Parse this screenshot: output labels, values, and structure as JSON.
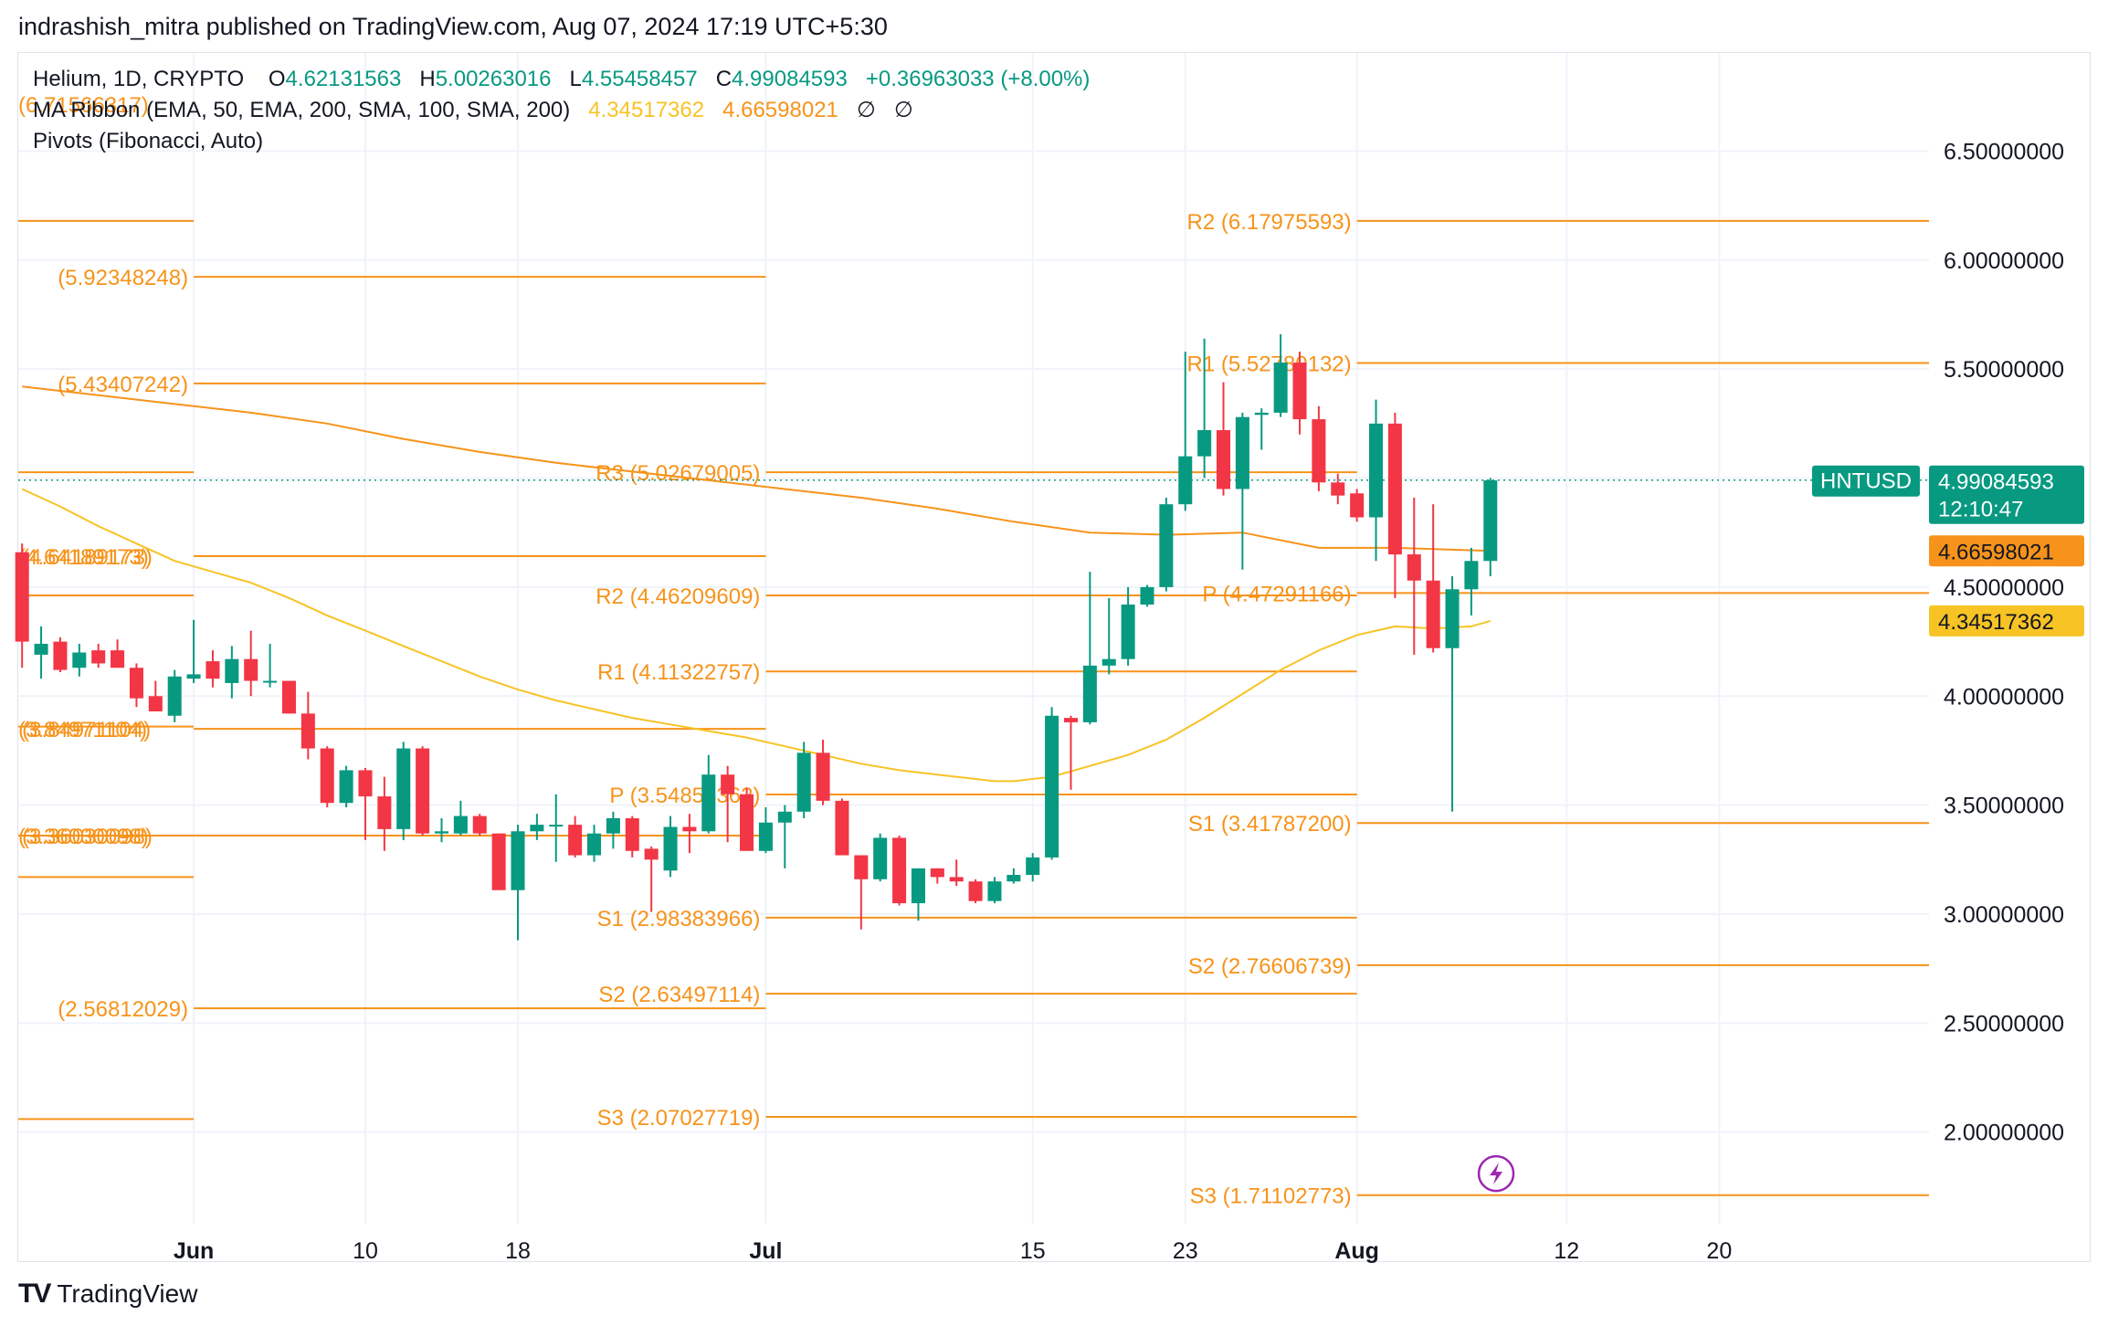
{
  "header": {
    "publisher_line": "indrashish_mitra published on TradingView.com, Aug 07, 2024 17:19 UTC+5:30"
  },
  "legend": {
    "symbol": "Helium, 1D, CRYPTO",
    "o_label": "O",
    "o_value": "4.62131563",
    "h_label": "H",
    "h_value": "5.00263016",
    "l_label": "L",
    "l_value": "4.55458457",
    "c_label": "C",
    "c_value": "4.99084593",
    "change": "+0.36963033 (+8.00%)",
    "ma_label": "MA Ribbon (EMA, 50, EMA, 200, SMA, 100, SMA, 200)",
    "ma_ema50": "4.34517362",
    "ma_ema200": "4.66598021",
    "ma_sma100": "∅",
    "ma_sma200": "∅",
    "pivots_label": "Pivots (Fibonacci, Auto)"
  },
  "footer": {
    "brand": "TradingView",
    "brand_logo": "TV"
  },
  "colors": {
    "up": "#089981",
    "down": "#f23645",
    "pivot": "#f7931a",
    "ema50": "#f7c325",
    "ema200": "#f7931a",
    "grid": "#f0f3fa",
    "axis_text": "#131722",
    "ticker_bg": "#089981",
    "ema200_tag_bg": "#f7931a",
    "ema50_tag_bg": "#f7c325",
    "event_icon": "#9c27b0"
  },
  "chart_data": {
    "type": "candlestick",
    "symbol": "HNTUSD",
    "y_ticks": [
      "6.50000000",
      "6.00000000",
      "5.50000000",
      "4.50000000",
      "4.00000000",
      "3.50000000",
      "3.00000000",
      "2.50000000",
      "2.00000000"
    ],
    "y_tick_values": [
      6.5,
      6.0,
      5.5,
      4.5,
      4.0,
      3.5,
      3.0,
      2.5,
      2.0
    ],
    "ylim": [
      1.58,
      6.95
    ],
    "x_ticks": [
      {
        "label": "Jun",
        "day": 31,
        "bold": true
      },
      {
        "label": "10",
        "day": 40
      },
      {
        "label": "18",
        "day": 48
      },
      {
        "label": "Jul",
        "day": 61,
        "bold": true
      },
      {
        "label": "15",
        "day": 75
      },
      {
        "label": "23",
        "day": 83
      },
      {
        "label": "Aug",
        "day": 92,
        "bold": true
      },
      {
        "label": "12",
        "day": 103
      },
      {
        "label": "20",
        "day": 111
      }
    ],
    "xlim": [
      21.8,
      122
    ],
    "last_price": {
      "label": "HNTUSD",
      "value": "4.99084593",
      "countdown": "12:10:47",
      "price": 4.99084593
    },
    "ma_tags": [
      {
        "value": "4.66598021",
        "price": 4.66598021,
        "series": "EMA 200"
      },
      {
        "value": "4.34517362",
        "price": 4.34517362,
        "series": "EMA 50"
      }
    ],
    "candles": [
      {
        "d": 22,
        "o": 4.66,
        "h": 4.7,
        "l": 4.13,
        "c": 4.25
      },
      {
        "d": 23,
        "o": 4.19,
        "h": 4.32,
        "l": 4.08,
        "c": 4.24
      },
      {
        "d": 24,
        "o": 4.25,
        "h": 4.27,
        "l": 4.11,
        "c": 4.12
      },
      {
        "d": 25,
        "o": 4.13,
        "h": 4.24,
        "l": 4.09,
        "c": 4.2
      },
      {
        "d": 26,
        "o": 4.21,
        "h": 4.24,
        "l": 4.13,
        "c": 4.15
      },
      {
        "d": 27,
        "o": 4.21,
        "h": 4.26,
        "l": 4.13,
        "c": 4.13
      },
      {
        "d": 28,
        "o": 4.13,
        "h": 4.15,
        "l": 3.95,
        "c": 3.99
      },
      {
        "d": 29,
        "o": 4.0,
        "h": 4.07,
        "l": 3.93,
        "c": 3.93
      },
      {
        "d": 30,
        "o": 3.91,
        "h": 4.12,
        "l": 3.88,
        "c": 4.09
      },
      {
        "d": 31,
        "o": 4.08,
        "h": 4.35,
        "l": 4.06,
        "c": 4.1
      },
      {
        "d": 32,
        "o": 4.16,
        "h": 4.21,
        "l": 4.04,
        "c": 4.08
      },
      {
        "d": 33,
        "o": 4.06,
        "h": 4.23,
        "l": 3.99,
        "c": 4.17
      },
      {
        "d": 34,
        "o": 4.17,
        "h": 4.3,
        "l": 4.0,
        "c": 4.07
      },
      {
        "d": 35,
        "o": 4.07,
        "h": 4.24,
        "l": 4.04,
        "c": 4.07
      },
      {
        "d": 36,
        "o": 4.07,
        "h": 4.07,
        "l": 3.92,
        "c": 3.92
      },
      {
        "d": 37,
        "o": 3.92,
        "h": 4.02,
        "l": 3.71,
        "c": 3.76
      },
      {
        "d": 38,
        "o": 3.76,
        "h": 3.77,
        "l": 3.49,
        "c": 3.51
      },
      {
        "d": 39,
        "o": 3.51,
        "h": 3.68,
        "l": 3.49,
        "c": 3.66
      },
      {
        "d": 40,
        "o": 3.66,
        "h": 3.67,
        "l": 3.34,
        "c": 3.54
      },
      {
        "d": 41,
        "o": 3.54,
        "h": 3.63,
        "l": 3.29,
        "c": 3.39
      },
      {
        "d": 42,
        "o": 3.39,
        "h": 3.79,
        "l": 3.34,
        "c": 3.76
      },
      {
        "d": 43,
        "o": 3.76,
        "h": 3.77,
        "l": 3.36,
        "c": 3.37
      },
      {
        "d": 44,
        "o": 3.37,
        "h": 3.44,
        "l": 3.33,
        "c": 3.38
      },
      {
        "d": 45,
        "o": 3.37,
        "h": 3.52,
        "l": 3.36,
        "c": 3.45
      },
      {
        "d": 46,
        "o": 3.45,
        "h": 3.46,
        "l": 3.36,
        "c": 3.37
      },
      {
        "d": 47,
        "o": 3.37,
        "h": 3.37,
        "l": 3.14,
        "c": 3.11
      },
      {
        "d": 48,
        "o": 3.11,
        "h": 3.41,
        "l": 2.88,
        "c": 3.38
      },
      {
        "d": 49,
        "o": 3.38,
        "h": 3.46,
        "l": 3.34,
        "c": 3.41
      },
      {
        "d": 50,
        "o": 3.41,
        "h": 3.55,
        "l": 3.24,
        "c": 3.41
      },
      {
        "d": 51,
        "o": 3.41,
        "h": 3.45,
        "l": 3.26,
        "c": 3.27
      },
      {
        "d": 52,
        "o": 3.27,
        "h": 3.41,
        "l": 3.24,
        "c": 3.37
      },
      {
        "d": 53,
        "o": 3.37,
        "h": 3.47,
        "l": 3.3,
        "c": 3.44
      },
      {
        "d": 54,
        "o": 3.44,
        "h": 3.45,
        "l": 3.26,
        "c": 3.29
      },
      {
        "d": 55,
        "o": 3.3,
        "h": 3.31,
        "l": 3.01,
        "c": 3.25
      },
      {
        "d": 56,
        "o": 3.2,
        "h": 3.45,
        "l": 3.17,
        "c": 3.4
      },
      {
        "d": 57,
        "o": 3.4,
        "h": 3.46,
        "l": 3.28,
        "c": 3.38
      },
      {
        "d": 58,
        "o": 3.38,
        "h": 3.73,
        "l": 3.37,
        "c": 3.64
      },
      {
        "d": 59,
        "o": 3.64,
        "h": 3.68,
        "l": 3.33,
        "c": 3.55
      },
      {
        "d": 60,
        "o": 3.55,
        "h": 3.58,
        "l": 3.3,
        "c": 3.29
      },
      {
        "d": 61,
        "o": 3.29,
        "h": 3.49,
        "l": 3.28,
        "c": 3.42
      },
      {
        "d": 62,
        "o": 3.42,
        "h": 3.5,
        "l": 3.21,
        "c": 3.47
      },
      {
        "d": 63,
        "o": 3.47,
        "h": 3.79,
        "l": 3.44,
        "c": 3.74
      },
      {
        "d": 64,
        "o": 3.74,
        "h": 3.8,
        "l": 3.5,
        "c": 3.52
      },
      {
        "d": 65,
        "o": 3.52,
        "h": 3.53,
        "l": 3.28,
        "c": 3.27
      },
      {
        "d": 66,
        "o": 3.27,
        "h": 3.27,
        "l": 2.93,
        "c": 3.16
      },
      {
        "d": 67,
        "o": 3.16,
        "h": 3.37,
        "l": 3.15,
        "c": 3.35
      },
      {
        "d": 68,
        "o": 3.35,
        "h": 3.36,
        "l": 3.04,
        "c": 3.05
      },
      {
        "d": 69,
        "o": 3.05,
        "h": 3.21,
        "l": 2.97,
        "c": 3.21
      },
      {
        "d": 70,
        "o": 3.21,
        "h": 3.21,
        "l": 3.14,
        "c": 3.17
      },
      {
        "d": 71,
        "o": 3.17,
        "h": 3.25,
        "l": 3.13,
        "c": 3.15
      },
      {
        "d": 72,
        "o": 3.15,
        "h": 3.16,
        "l": 3.05,
        "c": 3.06
      },
      {
        "d": 73,
        "o": 3.06,
        "h": 3.17,
        "l": 3.05,
        "c": 3.15
      },
      {
        "d": 74,
        "o": 3.15,
        "h": 3.21,
        "l": 3.14,
        "c": 3.18
      },
      {
        "d": 75,
        "o": 3.18,
        "h": 3.28,
        "l": 3.15,
        "c": 3.26
      },
      {
        "d": 76,
        "o": 3.26,
        "h": 3.95,
        "l": 3.25,
        "c": 3.91
      },
      {
        "d": 77,
        "o": 3.9,
        "h": 3.91,
        "l": 3.57,
        "c": 3.88
      },
      {
        "d": 78,
        "o": 3.88,
        "h": 4.57,
        "l": 3.87,
        "c": 4.14
      },
      {
        "d": 79,
        "o": 4.14,
        "h": 4.45,
        "l": 4.1,
        "c": 4.17
      },
      {
        "d": 80,
        "o": 4.17,
        "h": 4.5,
        "l": 4.14,
        "c": 4.42
      },
      {
        "d": 81,
        "o": 4.42,
        "h": 4.51,
        "l": 4.41,
        "c": 4.5
      },
      {
        "d": 82,
        "o": 4.5,
        "h": 4.91,
        "l": 4.48,
        "c": 4.88
      },
      {
        "d": 83,
        "o": 4.88,
        "h": 5.58,
        "l": 4.85,
        "c": 5.1
      },
      {
        "d": 84,
        "o": 5.1,
        "h": 5.64,
        "l": 5.0,
        "c": 5.22
      },
      {
        "d": 85,
        "o": 5.22,
        "h": 5.44,
        "l": 4.92,
        "c": 4.95
      },
      {
        "d": 86,
        "o": 4.95,
        "h": 5.3,
        "l": 4.58,
        "c": 5.28
      },
      {
        "d": 87,
        "o": 5.29,
        "h": 5.32,
        "l": 5.13,
        "c": 5.3
      },
      {
        "d": 88,
        "o": 5.3,
        "h": 5.66,
        "l": 5.28,
        "c": 5.53
      },
      {
        "d": 89,
        "o": 5.53,
        "h": 5.58,
        "l": 5.2,
        "c": 5.27
      },
      {
        "d": 90,
        "o": 5.27,
        "h": 5.33,
        "l": 4.94,
        "c": 4.98
      },
      {
        "d": 91,
        "o": 4.98,
        "h": 5.02,
        "l": 4.88,
        "c": 4.92
      },
      {
        "d": 92,
        "o": 4.93,
        "h": 4.95,
        "l": 4.8,
        "c": 4.82
      },
      {
        "d": 93,
        "o": 4.82,
        "h": 5.36,
        "l": 4.62,
        "c": 5.25
      },
      {
        "d": 94,
        "o": 5.25,
        "h": 5.3,
        "l": 4.45,
        "c": 4.65
      },
      {
        "d": 95,
        "o": 4.65,
        "h": 4.91,
        "l": 4.19,
        "c": 4.53
      },
      {
        "d": 96,
        "o": 4.53,
        "h": 4.88,
        "l": 4.2,
        "c": 4.22
      },
      {
        "d": 97,
        "o": 4.22,
        "h": 4.55,
        "l": 3.47,
        "c": 4.49
      },
      {
        "d": 98,
        "o": 4.49,
        "h": 4.68,
        "l": 4.37,
        "c": 4.62
      },
      {
        "d": 99,
        "o": 4.62,
        "h": 5.0,
        "l": 4.55,
        "c": 4.99
      }
    ],
    "ema50": [
      {
        "d": 22,
        "v": 4.95
      },
      {
        "d": 24,
        "v": 4.87
      },
      {
        "d": 26,
        "v": 4.78
      },
      {
        "d": 28,
        "v": 4.7
      },
      {
        "d": 30,
        "v": 4.62
      },
      {
        "d": 32,
        "v": 4.57
      },
      {
        "d": 34,
        "v": 4.52
      },
      {
        "d": 36,
        "v": 4.45
      },
      {
        "d": 38,
        "v": 4.37
      },
      {
        "d": 40,
        "v": 4.3
      },
      {
        "d": 42,
        "v": 4.23
      },
      {
        "d": 44,
        "v": 4.16
      },
      {
        "d": 46,
        "v": 4.09
      },
      {
        "d": 48,
        "v": 4.03
      },
      {
        "d": 50,
        "v": 3.98
      },
      {
        "d": 52,
        "v": 3.94
      },
      {
        "d": 54,
        "v": 3.9
      },
      {
        "d": 56,
        "v": 3.87
      },
      {
        "d": 58,
        "v": 3.84
      },
      {
        "d": 60,
        "v": 3.81
      },
      {
        "d": 62,
        "v": 3.77
      },
      {
        "d": 64,
        "v": 3.73
      },
      {
        "d": 66,
        "v": 3.69
      },
      {
        "d": 68,
        "v": 3.66
      },
      {
        "d": 70,
        "v": 3.64
      },
      {
        "d": 72,
        "v": 3.62
      },
      {
        "d": 73,
        "v": 3.61
      },
      {
        "d": 74,
        "v": 3.61
      },
      {
        "d": 76,
        "v": 3.63
      },
      {
        "d": 78,
        "v": 3.68
      },
      {
        "d": 80,
        "v": 3.73
      },
      {
        "d": 82,
        "v": 3.8
      },
      {
        "d": 84,
        "v": 3.9
      },
      {
        "d": 86,
        "v": 4.01
      },
      {
        "d": 88,
        "v": 4.12
      },
      {
        "d": 90,
        "v": 4.21
      },
      {
        "d": 92,
        "v": 4.28
      },
      {
        "d": 94,
        "v": 4.32
      },
      {
        "d": 96,
        "v": 4.31
      },
      {
        "d": 98,
        "v": 4.32
      },
      {
        "d": 99,
        "v": 4.345
      }
    ],
    "ema200": [
      {
        "d": 22,
        "v": 5.42
      },
      {
        "d": 26,
        "v": 5.38
      },
      {
        "d": 30,
        "v": 5.34
      },
      {
        "d": 34,
        "v": 5.3
      },
      {
        "d": 38,
        "v": 5.25
      },
      {
        "d": 42,
        "v": 5.18
      },
      {
        "d": 46,
        "v": 5.12
      },
      {
        "d": 50,
        "v": 5.07
      },
      {
        "d": 54,
        "v": 5.03
      },
      {
        "d": 58,
        "v": 4.99
      },
      {
        "d": 62,
        "v": 4.95
      },
      {
        "d": 66,
        "v": 4.91
      },
      {
        "d": 70,
        "v": 4.86
      },
      {
        "d": 74,
        "v": 4.8
      },
      {
        "d": 78,
        "v": 4.75
      },
      {
        "d": 82,
        "v": 4.74
      },
      {
        "d": 86,
        "v": 4.75
      },
      {
        "d": 90,
        "v": 4.68
      },
      {
        "d": 94,
        "v": 4.68
      },
      {
        "d": 99,
        "v": 4.666
      }
    ],
    "pivot_periods": [
      {
        "start": 21.8,
        "end": 31,
        "levels": [
          {
            "value": 6.17975593,
            "label": "(6.71566317)",
            "label_level": 6.71566317
          },
          {
            "value": 5.02679005,
            "label": "",
            "label_level": 5.02679005
          },
          {
            "value": 4.46209609,
            "label": "(4.64189173)",
            "label_level": 4.64189173
          },
          {
            "value": 3.86,
            "label": "(3.84971104)",
            "label_level": 3.84971104
          },
          {
            "value": 3.36030098,
            "label": "(3.36030098)",
            "label_level": 3.36030098
          },
          {
            "value": 3.17,
            "label": "",
            "label_level": 3.17
          },
          {
            "value": 2.06,
            "label": "",
            "label_level": 2.06
          }
        ]
      },
      {
        "start": 31,
        "end": 61,
        "levels": [
          {
            "value": 5.92348248,
            "label": "(5.92348248)",
            "label_level": 5.92348248
          },
          {
            "value": 5.43407242,
            "label": "(5.43407242)",
            "label_level": 5.43407242
          },
          {
            "value": 4.64189173,
            "label": "(4.64189173)",
            "label_level": 4.64189173
          },
          {
            "value": 3.84971104,
            "label": "(3.84971104)",
            "label_level": 3.84971104
          },
          {
            "value": 3.36030098,
            "label": "(3.36030098)",
            "label_level": 3.36030098
          },
          {
            "value": 2.56812029,
            "label": "(2.56812029)",
            "label_level": 2.56812029
          }
        ]
      },
      {
        "start": 61,
        "end": 92,
        "levels": [
          {
            "value": 5.02679005,
            "label": "R3 (5.02679005)",
            "label_level": 5.02679005
          },
          {
            "value": 4.46209609,
            "label": "R2 (4.46209609)",
            "label_level": 4.46209609
          },
          {
            "value": 4.11322757,
            "label": "R1 (4.11322757)",
            "label_level": 4.11322757
          },
          {
            "value": 3.54853362,
            "label": "P (3.54853362)",
            "label_level": 3.54853362
          },
          {
            "value": 2.98383966,
            "label": "S1 (2.98383966)",
            "label_level": 2.98383966
          },
          {
            "value": 2.63497114,
            "label": "S2 (2.63497114)",
            "label_level": 2.63497114
          },
          {
            "value": 2.07027719,
            "label": "S3 (2.07027719)",
            "label_level": 2.07027719
          }
        ]
      },
      {
        "start": 92,
        "end": 122,
        "levels": [
          {
            "value": 6.17975593,
            "label": "R2 (6.17975593)",
            "label_level": 6.17975593
          },
          {
            "value": 5.52780132,
            "label": "R1 (5.52780132)",
            "label_level": 5.52780132
          },
          {
            "value": 4.47291166,
            "label": "P (4.47291166)",
            "label_level": 4.47291166
          },
          {
            "value": 3.417872,
            "label": "S1 (3.41787200)",
            "label_level": 3.417872
          },
          {
            "value": 2.76606739,
            "label": "S2 (2.76606739)",
            "label_level": 2.76606739
          },
          {
            "value": 1.71102773,
            "label": "S3 (1.71102773)",
            "label_level": 1.71102773
          }
        ]
      }
    ],
    "event_icon": {
      "name": "lightning-event-icon",
      "day": 99.3,
      "price": 1.81
    }
  }
}
